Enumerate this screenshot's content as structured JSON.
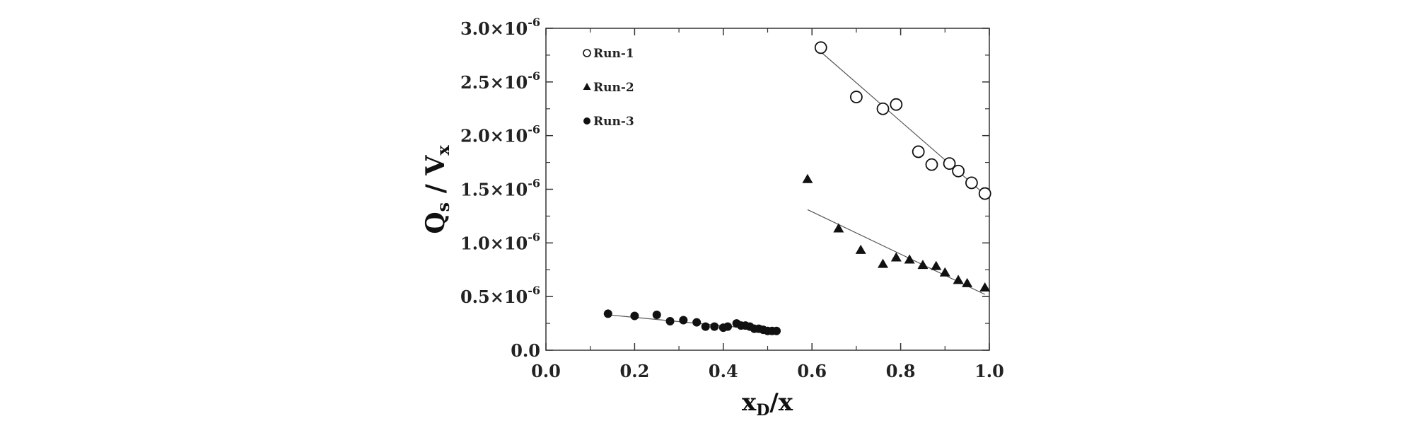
{
  "chart_data": {
    "type": "scatter",
    "xlabel": {
      "main": "x",
      "sub": "D",
      "tail": "/x"
    },
    "ylabel": {
      "main": "Q",
      "sub1": "s",
      "mid": " / V",
      "sub2": "x"
    },
    "xlim": [
      0.0,
      1.0
    ],
    "ylim": [
      0.0,
      3e-06
    ],
    "x_ticks": [
      {
        "value": 0.0,
        "label": "0.0"
      },
      {
        "value": 0.2,
        "label": "0.2"
      },
      {
        "value": 0.4,
        "label": "0.4"
      },
      {
        "value": 0.6,
        "label": "0.6"
      },
      {
        "value": 0.8,
        "label": "0.8"
      },
      {
        "value": 1.0,
        "label": "1.0"
      }
    ],
    "y_ticks": [
      {
        "value": 0.0,
        "mantissa": "0.0",
        "exp": ""
      },
      {
        "value": 5e-07,
        "mantissa": "0.5×10",
        "exp": "-6"
      },
      {
        "value": 1e-06,
        "mantissa": "1.0×10",
        "exp": "-6"
      },
      {
        "value": 1.5e-06,
        "mantissa": "1.5×10",
        "exp": "-6"
      },
      {
        "value": 2e-06,
        "mantissa": "2.0×10",
        "exp": "-6"
      },
      {
        "value": 2.5e-06,
        "mantissa": "2.5×10",
        "exp": "-6"
      },
      {
        "value": 3e-06,
        "mantissa": "3.0×10",
        "exp": "-6"
      }
    ],
    "legend_position": "top-left",
    "series": [
      {
        "name": "Run-1",
        "marker": "open-circle",
        "x": [
          0.62,
          0.7,
          0.76,
          0.79,
          0.84,
          0.87,
          0.91,
          0.93,
          0.96,
          0.99
        ],
        "y": [
          2.82e-06,
          2.36e-06,
          2.25e-06,
          2.29e-06,
          1.85e-06,
          1.73e-06,
          1.74e-06,
          1.67e-06,
          1.56e-06,
          1.46e-06
        ],
        "fit": {
          "x": [
            0.62,
            0.99
          ],
          "y": [
            2.78e-06,
            1.45e-06
          ]
        }
      },
      {
        "name": "Run-2",
        "marker": "filled-triangle",
        "x": [
          0.59,
          0.66,
          0.71,
          0.76,
          0.79,
          0.82,
          0.85,
          0.88,
          0.9,
          0.93,
          0.95,
          0.99
        ],
        "y": [
          1.59e-06,
          1.13e-06,
          9.3e-07,
          8e-07,
          8.6e-07,
          8.4e-07,
          7.9e-07,
          7.8e-07,
          7.2e-07,
          6.5e-07,
          6.2e-07,
          5.8e-07
        ],
        "fit": {
          "x": [
            0.59,
            0.99
          ],
          "y": [
            1.31e-06,
            5.2e-07
          ]
        }
      },
      {
        "name": "Run-3",
        "marker": "filled-circle",
        "x": [
          0.14,
          0.2,
          0.25,
          0.28,
          0.31,
          0.34,
          0.36,
          0.38,
          0.4,
          0.41,
          0.43,
          0.44,
          0.45,
          0.46,
          0.47,
          0.48,
          0.49,
          0.5,
          0.51,
          0.52
        ],
        "y": [
          3.4e-07,
          3.2e-07,
          3.3e-07,
          2.7e-07,
          2.8e-07,
          2.6e-07,
          2.2e-07,
          2.2e-07,
          2.1e-07,
          2.2e-07,
          2.5e-07,
          2.3e-07,
          2.3e-07,
          2.2e-07,
          2e-07,
          2e-07,
          1.9e-07,
          1.8e-07,
          1.8e-07,
          1.8e-07
        ],
        "fit": {
          "x": [
            0.14,
            0.52
          ],
          "y": [
            3.3e-07,
            1.8e-07
          ]
        }
      }
    ]
  }
}
